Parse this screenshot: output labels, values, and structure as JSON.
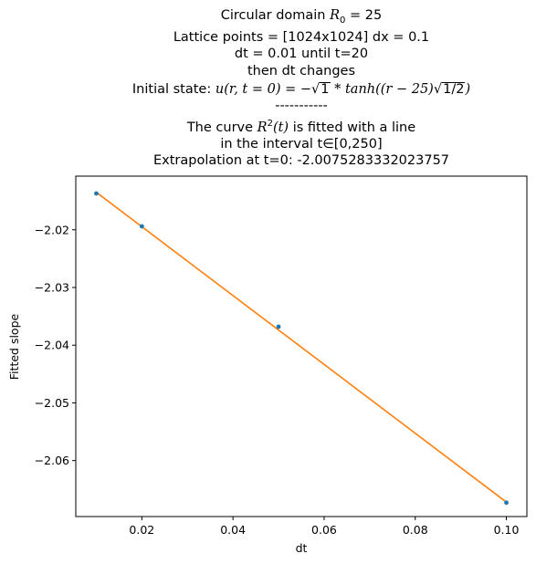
{
  "title": {
    "line1_text": "Circular domain ",
    "line1_math": "R",
    "line1_sub": "0",
    "line1_eq": " = 25",
    "line2": "Lattice points = [1024x1024] dx = 0.1",
    "line3": "dt = 0.01 until t=20",
    "line4": "then dt changes",
    "line5_text": "Initial state: ",
    "line5_math_a": "u(r, t = 0) = −",
    "line5_sqrt1": "1",
    "line5_math_b": " * tanh((r − 25)",
    "line5_sqrt2": "1/2",
    "line5_math_c": ")",
    "line6": "-----------",
    "line7_text_a": "The curve ",
    "line7_math": "R",
    "line7_sup": "2",
    "line7_math_b": "(t)",
    "line7_text_b": " is fitted with a line",
    "line8": "in the interval t∈[0,250]",
    "line9": "Extrapolation at t=0: -2.0075283332023757"
  },
  "chart_data": {
    "type": "scatter",
    "xlabel": "dt",
    "ylabel": "Fitted slope",
    "xlim": [
      0.0055,
      0.1045
    ],
    "ylim": [
      -2.0697,
      -2.0107
    ],
    "xticks": [
      0.02,
      0.04,
      0.06,
      0.08,
      0.1
    ],
    "xtick_labels": [
      "0.02",
      "0.04",
      "0.06",
      "0.08",
      "0.10"
    ],
    "yticks": [
      -2.02,
      -2.03,
      -2.04,
      -2.05,
      -2.06
    ],
    "ytick_labels": [
      "−2.02",
      "−2.03",
      "−2.04",
      "−2.05",
      "−2.06"
    ],
    "grid": false,
    "series": [
      {
        "kind": "points",
        "color": "#1f77b4",
        "x": [
          0.01,
          0.02,
          0.05,
          0.1
        ],
        "y": [
          -2.0137,
          -2.0194,
          -2.0368,
          -2.0673
        ]
      },
      {
        "kind": "fit-line",
        "color": "#ff7f0e",
        "x": [
          0.01,
          0.1
        ],
        "y": [
          -2.0135,
          -2.0672
        ]
      }
    ]
  }
}
